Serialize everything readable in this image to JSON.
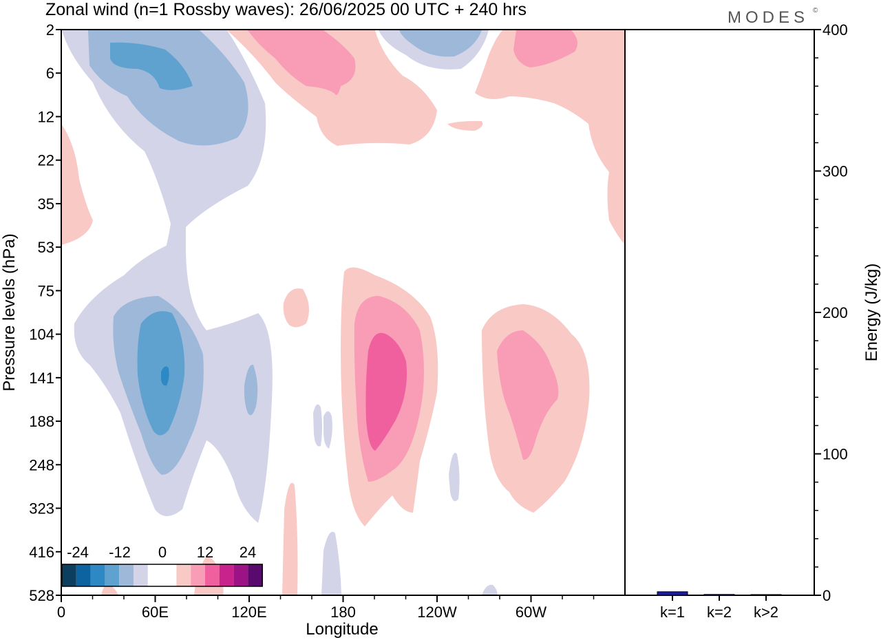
{
  "header": {
    "title": "Zonal wind (n=1 Rossby waves):  26/06/2025  00 UTC  + 240 hrs",
    "logo_text": "MODES",
    "logo_mark": "©"
  },
  "chart_data": [
    {
      "type": "heatmap",
      "title": "Zonal wind (n=1 Rossby waves):  26/06/2025  00 UTC  + 240 hrs",
      "xlabel": "Longitude",
      "ylabel": "Pressure levels (hPa)",
      "x_ticks": [
        "0",
        "60E",
        "120E",
        "180",
        "120W",
        "60W"
      ],
      "x_tick_degrees": [
        0,
        60,
        120,
        180,
        240,
        300
      ],
      "xlim": [
        0,
        360
      ],
      "y_ticks": [
        "2",
        "6",
        "12",
        "22",
        "35",
        "53",
        "75",
        "104",
        "141",
        "188",
        "248",
        "323",
        "416",
        "528"
      ],
      "y_scale": "categorical pressure levels, top to bottom",
      "colorbar": {
        "labels": [
          "-24",
          "-12",
          "0",
          "12",
          "24"
        ],
        "colors": [
          "#0c3f5e",
          "#0d62a0",
          "#2d88c4",
          "#5fa2cf",
          "#9db8d9",
          "#d3d4e8",
          "#ffffff",
          "#ffffff",
          "#f9c9c6",
          "#f99cb5",
          "#f05f9e",
          "#c8228c",
          "#9c1385",
          "#5a0a6e"
        ]
      },
      "features": [
        {
          "sign": "negative",
          "peak": -14,
          "lon": 40,
          "level": "6"
        },
        {
          "sign": "negative",
          "peak": -16,
          "lon": 66,
          "level": "141"
        },
        {
          "sign": "negative",
          "peak": -6,
          "lon": 122,
          "level": "141"
        },
        {
          "sign": "positive",
          "peak": 9,
          "lon": 175,
          "level": "6"
        },
        {
          "sign": "positive",
          "peak": 9,
          "lon": 315,
          "level": "2"
        },
        {
          "sign": "positive",
          "peak": 12,
          "lon": 200,
          "level": "141"
        },
        {
          "sign": "positive",
          "peak": 9,
          "lon": 285,
          "level": "141"
        }
      ],
      "grid": false
    },
    {
      "type": "bar",
      "ylabel": "Energy (J/kg)",
      "categories": [
        "k=1",
        "k=2",
        "k>2"
      ],
      "values": [
        2.5,
        0.6,
        0.5
      ],
      "ylim": [
        0,
        400
      ],
      "y_ticks": [
        "0",
        "100",
        "200",
        "300",
        "400"
      ],
      "bar_colors": [
        "#1b1ba8",
        "#1b1ba8",
        "#1b1ba8"
      ],
      "grid": false
    }
  ],
  "colors": {
    "frame": "#000000",
    "neg1": "#d3d4e8",
    "neg2": "#9db8d9",
    "neg3": "#5fa2cf",
    "neg4": "#2d88c4",
    "pos1": "#f9c9c6",
    "pos2": "#f99cb5",
    "pos3": "#f05f9e",
    "energy_bar": "#1b1ba8"
  }
}
